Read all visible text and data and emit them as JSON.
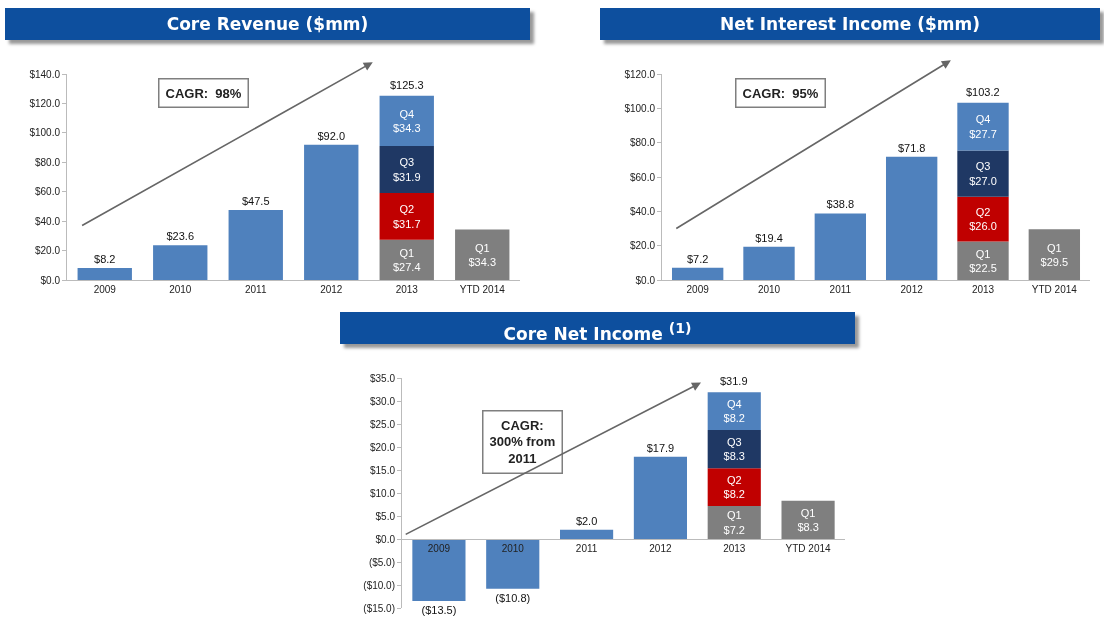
{
  "chart_data": [
    {
      "type": "bar",
      "title": "Core Revenue ($mm)",
      "categories": [
        "2009",
        "2010",
        "2011",
        "2012",
        "2013",
        "YTD 2014"
      ],
      "stacked": true,
      "grid": false,
      "series": [
        {
          "color": "#4f81bd",
          "values": [
            8.2,
            23.6,
            47.5,
            92.0,
            null,
            null
          ],
          "value_labels": [
            "$8.2",
            "$23.6",
            "$47.5",
            "$92.0",
            null,
            null
          ]
        },
        {
          "color": "#7f7f7f",
          "values": [
            null,
            null,
            null,
            null,
            27.4,
            34.3
          ],
          "value_labels": [
            null,
            null,
            null,
            null,
            "Q1\n$27.4",
            "Q1\n$34.3"
          ]
        },
        {
          "color": "#c00000",
          "values": [
            null,
            null,
            null,
            null,
            31.7,
            null
          ],
          "value_labels": [
            null,
            null,
            null,
            null,
            "Q2\n$31.7",
            null
          ]
        },
        {
          "color": "#1f3864",
          "values": [
            null,
            null,
            null,
            null,
            31.9,
            null
          ],
          "value_labels": [
            null,
            null,
            null,
            null,
            "Q3\n$31.9",
            null
          ]
        },
        {
          "color": "#4f81bd",
          "values": [
            null,
            null,
            null,
            null,
            34.3,
            null
          ],
          "value_labels": [
            null,
            null,
            null,
            null,
            "Q4\n$34.3",
            null
          ]
        }
      ],
      "totals": [
        null,
        null,
        null,
        null,
        "$125.3",
        null
      ],
      "ylim": [
        0,
        140
      ],
      "yticks": [
        {
          "value": 0,
          "label": "$0.0"
        },
        {
          "value": 20,
          "label": "$20.0"
        },
        {
          "value": 40,
          "label": "$40.0"
        },
        {
          "value": 60,
          "label": "$60.0"
        },
        {
          "value": 80,
          "label": "$80.0"
        },
        {
          "value": 100,
          "label": "$100.0"
        },
        {
          "value": 120,
          "label": "$120.0"
        },
        {
          "value": 140,
          "label": "$140.0"
        }
      ],
      "annotations": [
        "CAGR:  98%"
      ]
    },
    {
      "type": "bar",
      "title": "Net Interest Income ($mm)",
      "categories": [
        "2009",
        "2010",
        "2011",
        "2012",
        "2013",
        "YTD 2014"
      ],
      "stacked": true,
      "grid": false,
      "series": [
        {
          "color": "#4f81bd",
          "values": [
            7.2,
            19.4,
            38.8,
            71.8,
            null,
            null
          ],
          "value_labels": [
            "$7.2",
            "$19.4",
            "$38.8",
            "$71.8",
            null,
            null
          ]
        },
        {
          "color": "#7f7f7f",
          "values": [
            null,
            null,
            null,
            null,
            22.5,
            29.5
          ],
          "value_labels": [
            null,
            null,
            null,
            null,
            "Q1\n$22.5",
            "Q1\n$29.5"
          ]
        },
        {
          "color": "#c00000",
          "values": [
            null,
            null,
            null,
            null,
            26.0,
            null
          ],
          "value_labels": [
            null,
            null,
            null,
            null,
            "Q2\n$26.0",
            null
          ]
        },
        {
          "color": "#1f3864",
          "values": [
            null,
            null,
            null,
            null,
            27.0,
            null
          ],
          "value_labels": [
            null,
            null,
            null,
            null,
            "Q3\n$27.0",
            null
          ]
        },
        {
          "color": "#4f81bd",
          "values": [
            null,
            null,
            null,
            null,
            27.7,
            null
          ],
          "value_labels": [
            null,
            null,
            null,
            null,
            "Q4\n$27.7",
            null
          ]
        }
      ],
      "totals": [
        null,
        null,
        null,
        null,
        "$103.2",
        null
      ],
      "ylim": [
        0,
        120
      ],
      "yticks": [
        {
          "value": 0,
          "label": "$0.0"
        },
        {
          "value": 20,
          "label": "$20.0"
        },
        {
          "value": 40,
          "label": "$40.0"
        },
        {
          "value": 60,
          "label": "$60.0"
        },
        {
          "value": 80,
          "label": "$80.0"
        },
        {
          "value": 100,
          "label": "$100.0"
        },
        {
          "value": 120,
          "label": "$120.0"
        }
      ],
      "annotations": [
        "CAGR:  95%"
      ]
    },
    {
      "type": "bar",
      "title": "Core Net Income $^{(1)}$",
      "categories": [
        "2009",
        "2010",
        "2011",
        "2012",
        "2013",
        "YTD 2014"
      ],
      "stacked": true,
      "grid": false,
      "series": [
        {
          "color": "#4f81bd",
          "values": [
            -13.5,
            -10.8,
            2.0,
            17.9,
            null,
            null
          ],
          "value_labels": [
            "($13.5)",
            "($10.8)",
            "$2.0",
            "$17.9",
            null,
            null
          ]
        },
        {
          "color": "#7f7f7f",
          "values": [
            null,
            null,
            null,
            null,
            7.2,
            8.3
          ],
          "value_labels": [
            null,
            null,
            null,
            null,
            "Q1\n$7.2",
            "Q1\n$8.3"
          ]
        },
        {
          "color": "#c00000",
          "values": [
            null,
            null,
            null,
            null,
            8.2,
            null
          ],
          "value_labels": [
            null,
            null,
            null,
            null,
            "Q2\n$8.2",
            null
          ]
        },
        {
          "color": "#1f3864",
          "values": [
            null,
            null,
            null,
            null,
            8.3,
            null
          ],
          "value_labels": [
            null,
            null,
            null,
            null,
            "Q3\n$8.3",
            null
          ]
        },
        {
          "color": "#4f81bd",
          "values": [
            null,
            null,
            null,
            null,
            8.2,
            null
          ],
          "value_labels": [
            null,
            null,
            null,
            null,
            "Q4\n$8.2",
            null
          ]
        }
      ],
      "totals": [
        null,
        null,
        null,
        null,
        "$31.9",
        null
      ],
      "ylim": [
        -15,
        35
      ],
      "yticks": [
        {
          "value": -15,
          "label": "($15.0)"
        },
        {
          "value": -10,
          "label": "($10.0)"
        },
        {
          "value": -5,
          "label": "($5.0)"
        },
        {
          "value": 0,
          "label": "$0.0"
        },
        {
          "value": 5,
          "label": "$5.0"
        },
        {
          "value": 10,
          "label": "$10.0"
        },
        {
          "value": 15,
          "label": "$15.0"
        },
        {
          "value": 20,
          "label": "$20.0"
        },
        {
          "value": 25,
          "label": "$25.0"
        },
        {
          "value": 30,
          "label": "$30.0"
        },
        {
          "value": 35,
          "label": "$35.0"
        }
      ],
      "annotations": [
        "CAGR:\n300% from\n2011"
      ]
    }
  ]
}
